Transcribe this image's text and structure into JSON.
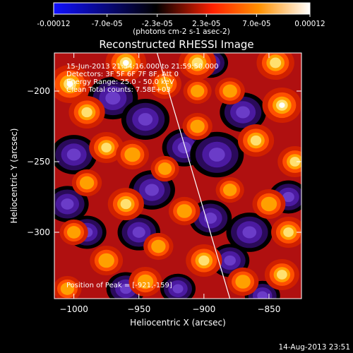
{
  "chart_data": {
    "type": "heatmap",
    "title": "Reconstructed RHESSI Image",
    "xlabel": "Heliocentric X (arcsec)",
    "ylabel": "Heliocentric Y (arcsec)",
    "x_range": [
      -1015,
      -825
    ],
    "y_range": [
      -347,
      -173
    ],
    "x_ticks": [
      -1000,
      -950,
      -900,
      -850
    ],
    "y_ticks": [
      -200,
      -250,
      -300
    ],
    "colorbar": {
      "range": [
        -0.00012,
        0.00012
      ],
      "tick_values": [
        -0.00012,
        -7e-05,
        -2.3e-05,
        2.3e-05,
        7e-05,
        0.00012
      ],
      "tick_labels": [
        "-0.00012",
        "-7.0e-05",
        "-2.3e-05",
        "2.3e-05",
        "7.0e-05",
        "0.00012"
      ],
      "unit_label": "(photons cm-2 s-1 asec-2)",
      "colors": [
        "#1010ff",
        "#000000",
        "#ff2000",
        "#ff9000",
        "#ffffff"
      ]
    },
    "limb_line": {
      "x1": -936,
      "y1": -173,
      "x2": -880,
      "y2": -347
    },
    "annotations": [
      "15-Jun-2013 21:54:16.000 to 21:59:50.000",
      "Detectors: 3F 5F 6F 7F 8F, Att 0",
      "Energy Range: 25.0 - 50.0 keV",
      "Clean    Total counts: 7.58E+03"
    ],
    "peak_label": "Position of Peak = [-921,-159]",
    "footer_date": "14-Aug-2013 23:51",
    "bright_spots": [
      {
        "x": -1003,
        "y": -195,
        "v": 1.0
      },
      {
        "x": -990,
        "y": -215,
        "v": 0.8
      },
      {
        "x": -960,
        "y": -180,
        "v": 0.95
      },
      {
        "x": -930,
        "y": -195,
        "v": 0.7
      },
      {
        "x": -905,
        "y": -180,
        "v": 0.85
      },
      {
        "x": -880,
        "y": -200,
        "v": 0.6
      },
      {
        "x": -845,
        "y": -180,
        "v": 0.85
      },
      {
        "x": -840,
        "y": -210,
        "v": 0.9
      },
      {
        "x": -860,
        "y": -235,
        "v": 0.8
      },
      {
        "x": -830,
        "y": -250,
        "v": 0.75
      },
      {
        "x": -975,
        "y": -240,
        "v": 0.75
      },
      {
        "x": -955,
        "y": -245,
        "v": 0.7
      },
      {
        "x": -930,
        "y": -255,
        "v": 0.55
      },
      {
        "x": -905,
        "y": -225,
        "v": 0.6
      },
      {
        "x": -990,
        "y": -265,
        "v": 0.6
      },
      {
        "x": -960,
        "y": -280,
        "v": 0.8
      },
      {
        "x": -915,
        "y": -285,
        "v": 0.65
      },
      {
        "x": -880,
        "y": -270,
        "v": 0.55
      },
      {
        "x": -850,
        "y": -280,
        "v": 0.7
      },
      {
        "x": -835,
        "y": -300,
        "v": 0.75
      },
      {
        "x": -1000,
        "y": -300,
        "v": 0.55
      },
      {
        "x": -975,
        "y": -320,
        "v": 0.7
      },
      {
        "x": -935,
        "y": -310,
        "v": 0.6
      },
      {
        "x": -900,
        "y": -320,
        "v": 0.8
      },
      {
        "x": -870,
        "y": -335,
        "v": 0.65
      },
      {
        "x": -840,
        "y": -330,
        "v": 0.75
      },
      {
        "x": -945,
        "y": -335,
        "v": 0.7
      },
      {
        "x": -1005,
        "y": -340,
        "v": 0.55
      },
      {
        "x": -905,
        "y": -200,
        "v": 0.55
      }
    ],
    "dark_spots": [
      {
        "x": -1000,
        "y": -245,
        "v": 0.8
      },
      {
        "x": -970,
        "y": -205,
        "v": 0.9
      },
      {
        "x": -945,
        "y": -220,
        "v": 0.85
      },
      {
        "x": -915,
        "y": -240,
        "v": 0.75
      },
      {
        "x": -890,
        "y": -245,
        "v": 1.0
      },
      {
        "x": -870,
        "y": -215,
        "v": 0.8
      },
      {
        "x": -895,
        "y": -180,
        "v": 0.5
      },
      {
        "x": -1005,
        "y": -280,
        "v": 0.7
      },
      {
        "x": -940,
        "y": -270,
        "v": 0.8
      },
      {
        "x": -895,
        "y": -290,
        "v": 0.7
      },
      {
        "x": -865,
        "y": -300,
        "v": 0.8
      },
      {
        "x": -990,
        "y": -300,
        "v": 0.6
      },
      {
        "x": -950,
        "y": -300,
        "v": 0.7
      },
      {
        "x": -880,
        "y": -320,
        "v": 0.6
      },
      {
        "x": -835,
        "y": -275,
        "v": 0.6
      },
      {
        "x": -960,
        "y": -340,
        "v": 0.6
      },
      {
        "x": -920,
        "y": -340,
        "v": 0.5
      },
      {
        "x": -855,
        "y": -345,
        "v": 0.5
      }
    ]
  }
}
